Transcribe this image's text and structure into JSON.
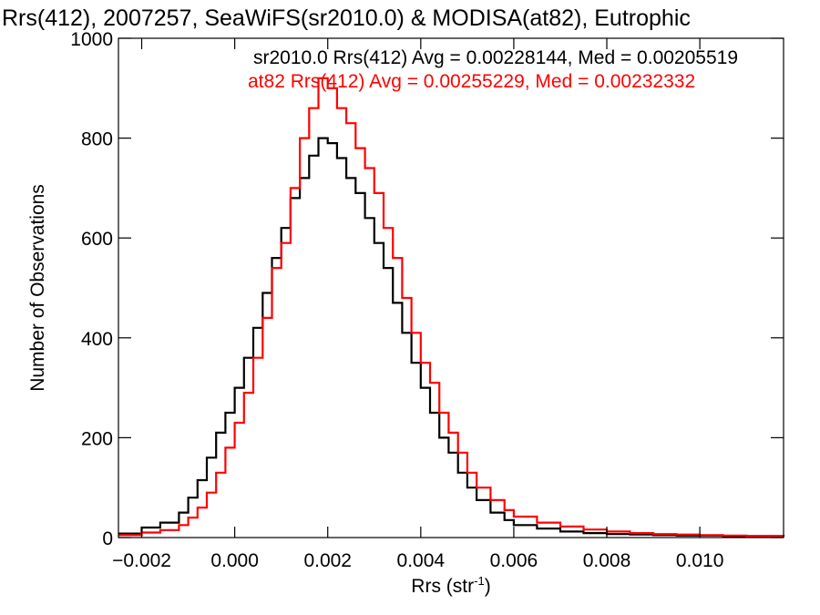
{
  "chart_data": {
    "type": "line",
    "title": "Rrs(412), 2007257, SeaWiFS(sr2010.0) & MODISA(at82), Eutrophic",
    "xlabel": "Rrs (str",
    "xlabel_sup": "-1",
    "xlabel_end": ")",
    "ylabel": "Number of Observations",
    "xlim": [
      -0.0025,
      0.0118
    ],
    "ylim": [
      0,
      1000
    ],
    "xticks": [
      -0.002,
      0.0,
      0.002,
      0.004,
      0.006,
      0.008,
      0.01
    ],
    "xtick_labels": [
      "−0.002",
      "0.000",
      "0.002",
      "0.004",
      "0.006",
      "0.008",
      "0.010"
    ],
    "yticks": [
      0,
      200,
      400,
      600,
      800,
      1000
    ],
    "ytick_labels": [
      "0",
      "200",
      "400",
      "600",
      "800",
      "1000"
    ],
    "grid": false,
    "legend_placement": "top",
    "series": [
      {
        "name": "sr2010.0",
        "annotation": "sr2010.0 Rrs(412) Avg = 0.00228144, Med = 0.00205519",
        "color": "#000000",
        "x": [
          -0.0025,
          -0.002,
          -0.0016,
          -0.0012,
          -0.001,
          -0.0008,
          -0.0006,
          -0.0004,
          -0.0002,
          0.0,
          0.0002,
          0.0004,
          0.0006,
          0.0008,
          0.001,
          0.0012,
          0.0014,
          0.0016,
          0.0018,
          0.002,
          0.0022,
          0.0024,
          0.0026,
          0.0028,
          0.003,
          0.0032,
          0.0034,
          0.0036,
          0.0038,
          0.004,
          0.0042,
          0.0044,
          0.0046,
          0.0048,
          0.005,
          0.0052,
          0.0055,
          0.0058,
          0.006,
          0.0065,
          0.007,
          0.0075,
          0.008,
          0.0085,
          0.009,
          0.0095,
          0.01,
          0.0105,
          0.011,
          0.0118
        ],
        "y": [
          8,
          20,
          30,
          50,
          80,
          115,
          160,
          210,
          250,
          300,
          360,
          420,
          490,
          560,
          620,
          680,
          720,
          765,
          800,
          790,
          760,
          720,
          690,
          640,
          590,
          540,
          470,
          410,
          350,
          300,
          250,
          200,
          170,
          130,
          100,
          75,
          50,
          35,
          25,
          18,
          12,
          9,
          7,
          6,
          5,
          4,
          4,
          3,
          3,
          2
        ]
      },
      {
        "name": "at82",
        "annotation": "at82 Rrs(412) Avg = 0.00255229, Med = 0.00232332",
        "color": "#ff0000",
        "x": [
          -0.0025,
          -0.002,
          -0.0016,
          -0.0012,
          -0.001,
          -0.0008,
          -0.0006,
          -0.0004,
          -0.0002,
          0.0,
          0.0002,
          0.0004,
          0.0006,
          0.0008,
          0.001,
          0.0012,
          0.0014,
          0.0016,
          0.0018,
          0.002,
          0.0022,
          0.0024,
          0.0026,
          0.0028,
          0.003,
          0.0032,
          0.0034,
          0.0036,
          0.0038,
          0.004,
          0.0042,
          0.0044,
          0.0046,
          0.0048,
          0.005,
          0.0052,
          0.0055,
          0.0058,
          0.006,
          0.0065,
          0.007,
          0.0075,
          0.008,
          0.0085,
          0.009,
          0.0095,
          0.01,
          0.0105,
          0.011,
          0.0118
        ],
        "y": [
          5,
          10,
          15,
          25,
          40,
          60,
          90,
          130,
          180,
          230,
          290,
          360,
          440,
          540,
          590,
          700,
          800,
          860,
          920,
          900,
          860,
          830,
          780,
          740,
          690,
          620,
          560,
          480,
          410,
          350,
          310,
          250,
          210,
          170,
          130,
          100,
          75,
          55,
          42,
          30,
          22,
          16,
          12,
          9,
          7,
          6,
          5,
          4,
          3,
          2
        ]
      }
    ]
  }
}
